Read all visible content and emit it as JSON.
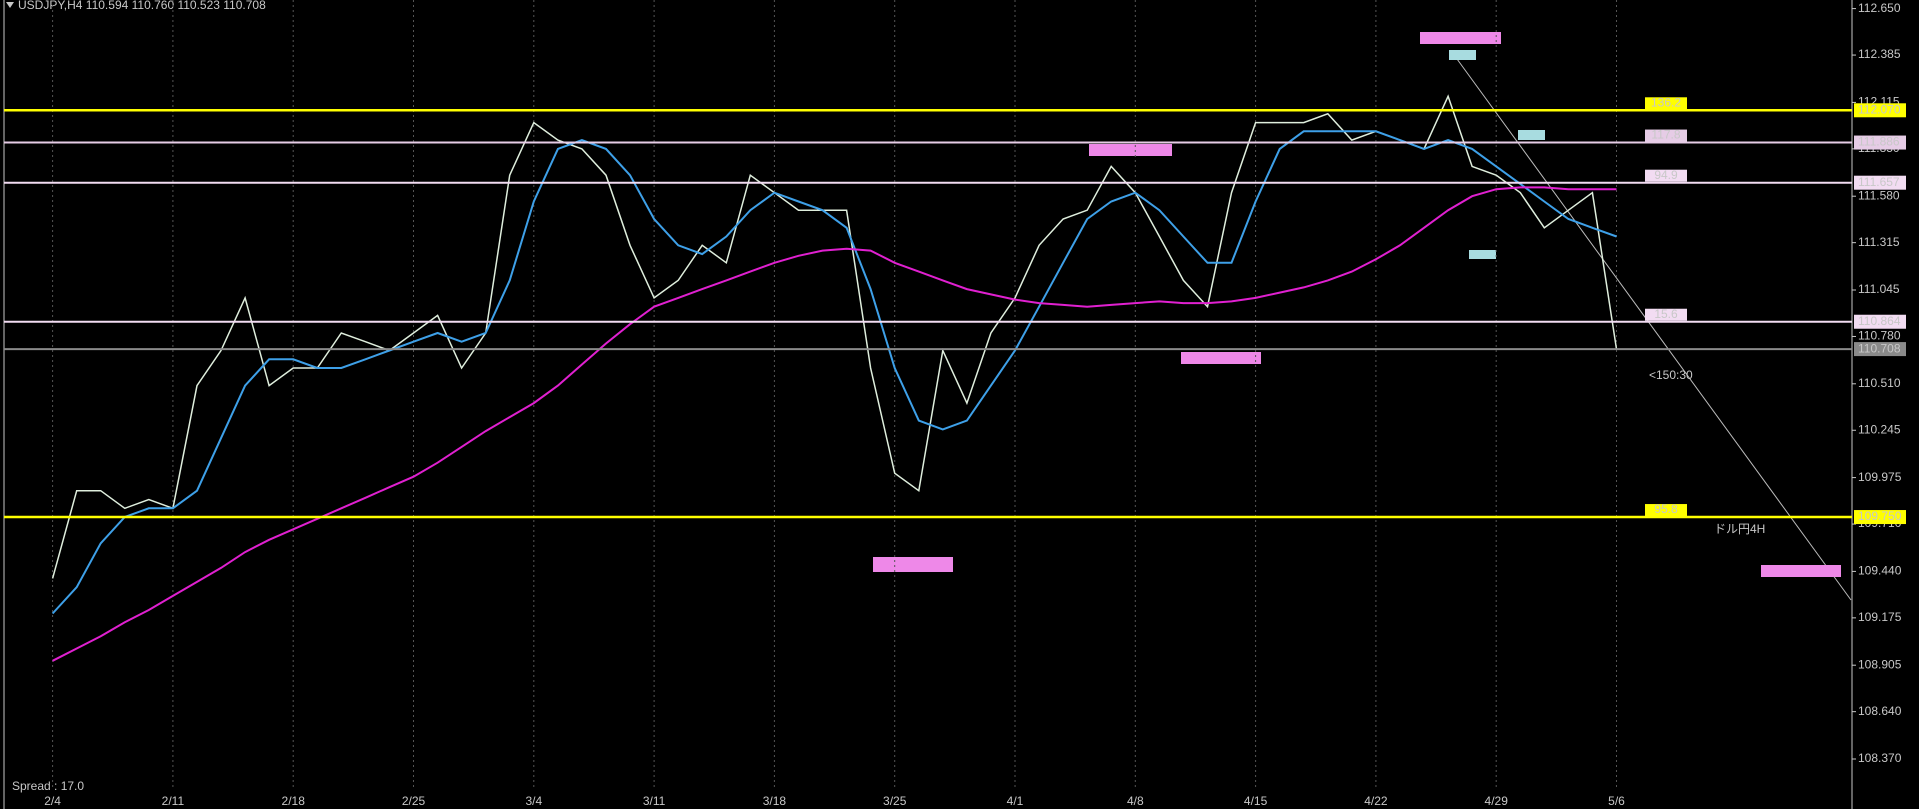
{
  "chart_data": {
    "type": "line",
    "title": "USDJPY,H4  110.594 110.760 110.523 110.708",
    "categories": [
      "2/4",
      null,
      null,
      null,
      null,
      "2/11",
      null,
      null,
      null,
      null,
      "2/18",
      null,
      null,
      null,
      null,
      "2/25",
      null,
      null,
      null,
      null,
      "3/4",
      null,
      null,
      null,
      null,
      "3/11",
      null,
      null,
      null,
      null,
      "3/18",
      null,
      null,
      null,
      null,
      "3/25",
      null,
      null,
      null,
      null,
      "4/1",
      null,
      null,
      null,
      null,
      "4/8",
      null,
      null,
      null,
      null,
      "4/15",
      null,
      null,
      null,
      null,
      "4/22",
      null,
      null,
      null,
      null,
      "4/29",
      null,
      null,
      null,
      null,
      "5/6"
    ],
    "series": [
      {
        "color": "#dfeedd",
        "values": [
          109.4,
          109.9,
          109.9,
          109.8,
          109.85,
          109.8,
          110.5,
          110.7,
          111.0,
          110.5,
          110.6,
          110.6,
          110.8,
          110.75,
          110.7,
          110.8,
          110.9,
          110.6,
          110.8,
          111.7,
          112.0,
          111.9,
          111.85,
          111.7,
          111.3,
          111.0,
          111.1,
          111.3,
          111.2,
          111.7,
          111.6,
          111.5,
          111.5,
          111.5,
          110.6,
          110.0,
          109.9,
          110.7,
          110.4,
          110.8,
          111.0,
          111.3,
          111.45,
          111.5,
          111.75,
          111.6,
          111.35,
          111.1,
          110.95,
          111.6,
          112.0,
          112.0,
          112.0,
          112.05,
          111.9,
          111.95,
          111.9,
          111.85,
          112.15,
          111.75,
          111.7,
          111.6,
          111.4,
          111.5,
          111.6,
          110.708
        ]
      },
      {
        "color": "#3ea0e8",
        "values": [
          109.2,
          109.35,
          109.6,
          109.75,
          109.8,
          109.8,
          109.9,
          110.2,
          110.5,
          110.65,
          110.65,
          110.6,
          110.6,
          110.65,
          110.7,
          110.75,
          110.8,
          110.75,
          110.8,
          111.1,
          111.55,
          111.85,
          111.9,
          111.85,
          111.7,
          111.45,
          111.3,
          111.25,
          111.35,
          111.5,
          111.6,
          111.55,
          111.5,
          111.4,
          111.05,
          110.6,
          110.3,
          110.25,
          110.3,
          110.5,
          110.7,
          110.95,
          111.2,
          111.45,
          111.55,
          111.6,
          111.5,
          111.35,
          111.2,
          111.2,
          111.55,
          111.85,
          111.95,
          111.95,
          111.95,
          111.95,
          111.9,
          111.85,
          111.9,
          111.85,
          111.75,
          111.65,
          111.55,
          111.45,
          111.4,
          111.35
        ]
      },
      {
        "color": "#e020d0",
        "values": [
          108.93,
          109.0,
          109.07,
          109.15,
          109.22,
          109.3,
          109.38,
          109.46,
          109.55,
          109.62,
          109.68,
          109.74,
          109.8,
          109.86,
          109.92,
          109.98,
          110.06,
          110.15,
          110.24,
          110.32,
          110.4,
          110.5,
          110.62,
          110.74,
          110.85,
          110.95,
          111.0,
          111.05,
          111.1,
          111.15,
          111.2,
          111.24,
          111.27,
          111.28,
          111.27,
          111.2,
          111.15,
          111.1,
          111.05,
          111.02,
          110.99,
          110.97,
          110.96,
          110.95,
          110.96,
          110.97,
          110.98,
          110.97,
          110.97,
          110.98,
          111.0,
          111.03,
          111.06,
          111.1,
          111.15,
          111.22,
          111.3,
          111.4,
          111.5,
          111.58,
          111.62,
          111.63,
          111.63,
          111.62,
          111.62,
          111.62
        ]
      }
    ],
    "ylim": [
      108.37,
      112.65
    ],
    "yticks": [
      {
        "value": 112.65,
        "label": "112.650"
      },
      {
        "value": 112.385,
        "label": "112.385"
      },
      {
        "value": 112.115,
        "label": "112.115"
      },
      {
        "value": 111.85,
        "label": "111.850"
      },
      {
        "value": 111.58,
        "label": "111.580"
      },
      {
        "value": 111.315,
        "label": "111.315"
      },
      {
        "value": 111.045,
        "label": "111.045"
      },
      {
        "value": 110.78,
        "label": "110.780"
      },
      {
        "value": 110.51,
        "label": "110.510"
      },
      {
        "value": 110.245,
        "label": "110.245"
      },
      {
        "value": 109.975,
        "label": "109.975"
      },
      {
        "value": 109.71,
        "label": "109.710"
      },
      {
        "value": 109.44,
        "label": "109.440"
      },
      {
        "value": 109.175,
        "label": "109.175"
      },
      {
        "value": 108.905,
        "label": "108.905"
      },
      {
        "value": 108.64,
        "label": "108.640"
      },
      {
        "value": 108.37,
        "label": "108.370"
      }
    ],
    "levels": [
      {
        "value": 112.07,
        "label": "112.070",
        "color": "#ffff00",
        "tag": "136.2"
      },
      {
        "value": 111.886,
        "label": "111.886",
        "color": "#e6cce6",
        "tag": "117.8"
      },
      {
        "value": 111.657,
        "label": "111.657",
        "color": "#f2dcf2",
        "tag": "94.9"
      },
      {
        "value": 110.864,
        "label": "110.864",
        "color": "#f2dcf2",
        "tag": "15.6"
      },
      {
        "value": 110.708,
        "label": "110.708",
        "color": "#8a8a8a"
      },
      {
        "value": 109.75,
        "label": "109.750",
        "color": "#ffff00",
        "tag": "95.8"
      }
    ],
    "annotations": [
      "<150:30",
      "ドル円4H",
      "Spread : 17.0"
    ],
    "grid": true
  }
}
